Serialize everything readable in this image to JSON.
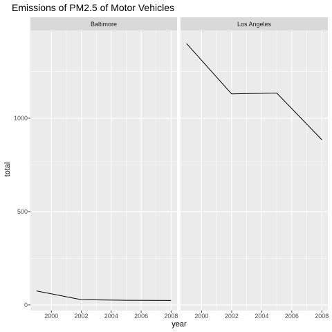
{
  "chart_data": {
    "type": "line",
    "title": "Emissions of PM2.5 of Motor Vehicles",
    "xlabel": "year",
    "ylabel": "total",
    "x_ticks": [
      2000,
      2002,
      2004,
      2006,
      2008
    ],
    "y_ticks": [
      0,
      500,
      1000
    ],
    "xlim": [
      1998.6,
      2008.4
    ],
    "ylim": [
      -30,
      1470
    ],
    "grid": true,
    "facets": [
      {
        "label": "Baltimore",
        "x": [
          1999,
          2002,
          2005,
          2008
        ],
        "y": [
          75,
          28,
          25,
          24
        ]
      },
      {
        "label": "Los Angeles",
        "x": [
          1999,
          2002,
          2005,
          2008
        ],
        "y": [
          1400,
          1130,
          1135,
          885
        ]
      }
    ]
  },
  "colors": {
    "panel_bg": "#ebebeb",
    "strip_bg": "#d9d9d9",
    "grid_major": "#ffffff",
    "line": "#000000",
    "tick_text": "#4d4d4d"
  }
}
